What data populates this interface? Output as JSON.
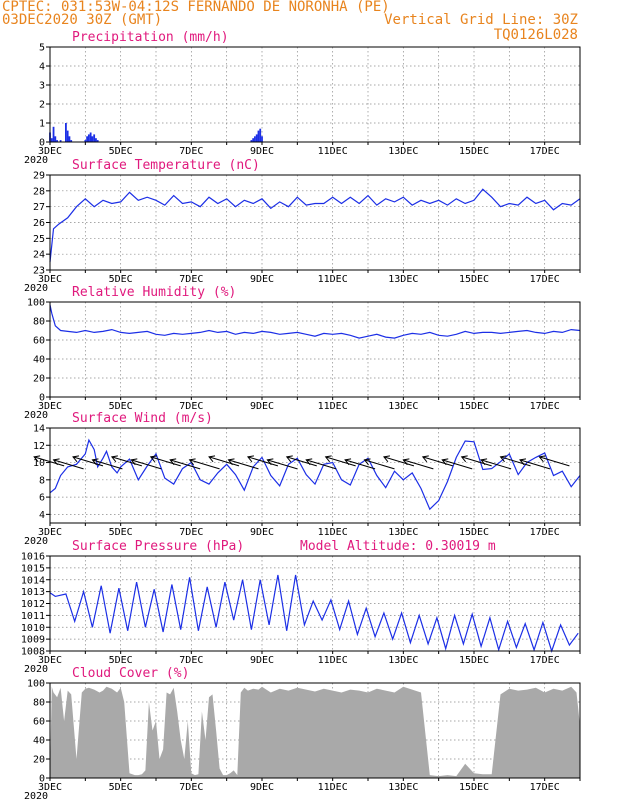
{
  "header": {
    "line1": "CPTEC:  031:53W-04:12S  FERNANDO DE NORONHA (PE)",
    "line2_left": "03DEC2020 30Z (GMT)",
    "line2_right": "Vertical Grid Line: 30Z",
    "code": "TQ0126L028"
  },
  "x_ticks": [
    "3DEC",
    "5DEC",
    "7DEC",
    "9DEC",
    "11DEC",
    "13DEC",
    "15DEC",
    "17DEC"
  ],
  "year_label": "2020",
  "panels": [
    {
      "id": "precip",
      "title": "Precipitation (mm/h)",
      "extra": "",
      "y_ticks": [
        "0",
        "1",
        "2",
        "3",
        "4",
        "5"
      ]
    },
    {
      "id": "temp",
      "title": "Surface Temperature (nC)",
      "extra": "",
      "y_ticks": [
        "23",
        "24",
        "25",
        "26",
        "27",
        "28",
        "29"
      ]
    },
    {
      "id": "rh",
      "title": "Relative Humidity (%)",
      "extra": "",
      "y_ticks": [
        "0",
        "20",
        "40",
        "60",
        "80",
        "100"
      ]
    },
    {
      "id": "wind",
      "title": "Surface Wind (m/s)",
      "extra": "",
      "y_ticks": [
        "4",
        "6",
        "8",
        "10",
        "12",
        "14"
      ]
    },
    {
      "id": "pres",
      "title": "Surface Pressure (hPa)",
      "extra": "Model Altitude: 0.30019 m",
      "y_ticks": [
        "1008",
        "1009",
        "1010",
        "1011",
        "1012",
        "1013",
        "1014",
        "1015",
        "1016"
      ]
    },
    {
      "id": "cloud",
      "title": "Cloud Cover (%)",
      "extra": "",
      "y_ticks": [
        "0",
        "20",
        "40",
        "60",
        "80",
        "100"
      ]
    }
  ],
  "colors": {
    "line": "#1c2fe6",
    "cloud": "#a9a9a9",
    "header": "#e8841e",
    "title": "#e0197d"
  },
  "chart_data": [
    {
      "type": "bar",
      "title": "Precipitation (mm/h)",
      "xlabel": "",
      "ylabel": "",
      "x_unit": "days since 3DEC2020",
      "ylim": [
        0,
        5
      ],
      "x": [
        0.0,
        0.05,
        0.1,
        0.15,
        0.2,
        0.25,
        0.3,
        0.45,
        0.5,
        0.55,
        0.6,
        1.0,
        1.05,
        1.1,
        1.15,
        1.2,
        1.25,
        1.3,
        1.35,
        1.4,
        1.45,
        5.7,
        5.75,
        5.8,
        5.85,
        5.9,
        5.95,
        6.0
      ],
      "values": [
        0.5,
        0.2,
        0.8,
        0.3,
        0.1,
        0.0,
        0.1,
        1.0,
        0.6,
        0.3,
        0.1,
        0.1,
        0.3,
        0.4,
        0.5,
        0.3,
        0.4,
        0.2,
        0.1,
        0.0,
        0.0,
        0.1,
        0.2,
        0.3,
        0.4,
        0.6,
        0.7,
        0.3
      ]
    },
    {
      "type": "line",
      "title": "Surface Temperature (nC)",
      "ylim": [
        23,
        29
      ],
      "x": [
        0,
        0.1,
        0.25,
        0.5,
        0.75,
        1.0,
        1.25,
        1.5,
        1.75,
        2.0,
        2.25,
        2.5,
        2.75,
        3.0,
        3.25,
        3.5,
        3.75,
        4.0,
        4.25,
        4.5,
        4.75,
        5.0,
        5.25,
        5.5,
        5.75,
        6.0,
        6.25,
        6.5,
        6.75,
        7.0,
        7.25,
        7.5,
        7.75,
        8.0,
        8.25,
        8.5,
        8.75,
        9.0,
        9.25,
        9.5,
        9.75,
        10.0,
        10.25,
        10.5,
        10.75,
        11.0,
        11.25,
        11.5,
        11.75,
        12.0,
        12.25,
        12.5,
        12.75,
        13.0,
        13.25,
        13.5,
        13.75,
        14.0,
        14.25,
        14.5,
        14.75,
        15.0
      ],
      "values": [
        23.5,
        25.6,
        25.9,
        26.3,
        27.0,
        27.5,
        27.0,
        27.4,
        27.2,
        27.3,
        27.9,
        27.4,
        27.6,
        27.4,
        27.1,
        27.7,
        27.2,
        27.3,
        27.0,
        27.6,
        27.2,
        27.5,
        27.0,
        27.4,
        27.2,
        27.5,
        26.9,
        27.3,
        27.0,
        27.6,
        27.1,
        27.2,
        27.2,
        27.6,
        27.2,
        27.6,
        27.2,
        27.7,
        27.1,
        27.5,
        27.3,
        27.6,
        27.1,
        27.4,
        27.2,
        27.4,
        27.1,
        27.5,
        27.2,
        27.4,
        28.1,
        27.6,
        27.0,
        27.2,
        27.1,
        27.6,
        27.2,
        27.4,
        26.8,
        27.2,
        27.1,
        27.5
      ]
    },
    {
      "type": "line",
      "title": "Relative Humidity (%)",
      "ylim": [
        0,
        100
      ],
      "x": [
        0,
        0.05,
        0.15,
        0.3,
        0.5,
        0.75,
        1.0,
        1.25,
        1.5,
        1.75,
        2.0,
        2.25,
        2.5,
        2.75,
        3.0,
        3.25,
        3.5,
        3.75,
        4.0,
        4.25,
        4.5,
        4.75,
        5.0,
        5.25,
        5.5,
        5.75,
        6.0,
        6.25,
        6.5,
        6.75,
        7.0,
        7.25,
        7.5,
        7.75,
        8.0,
        8.25,
        8.5,
        8.75,
        9.0,
        9.25,
        9.5,
        9.75,
        10.0,
        10.25,
        10.5,
        10.75,
        11.0,
        11.25,
        11.5,
        11.75,
        12.0,
        12.25,
        12.5,
        12.75,
        13.0,
        13.25,
        13.5,
        13.75,
        14.0,
        14.25,
        14.5,
        14.75,
        15.0
      ],
      "values": [
        97,
        88,
        75,
        70,
        69,
        68,
        70,
        68,
        69,
        71,
        68,
        67,
        68,
        69,
        66,
        65,
        67,
        66,
        67,
        68,
        70,
        68,
        69,
        66,
        68,
        67,
        69,
        68,
        66,
        67,
        68,
        66,
        64,
        67,
        66,
        67,
        65,
        62,
        64,
        66,
        63,
        62,
        65,
        67,
        66,
        68,
        65,
        64,
        66,
        69,
        67,
        68,
        68,
        67,
        68,
        69,
        70,
        68,
        67,
        69,
        68,
        71,
        70
      ]
    },
    {
      "type": "line",
      "title": "Surface Wind (m/s)",
      "ylim": [
        3,
        14
      ],
      "x": [
        0,
        0.15,
        0.3,
        0.5,
        0.75,
        1.0,
        1.1,
        1.25,
        1.35,
        1.5,
        1.6,
        1.75,
        1.9,
        2.0,
        2.25,
        2.5,
        2.75,
        3.0,
        3.25,
        3.5,
        3.75,
        4.0,
        4.25,
        4.5,
        4.75,
        5.0,
        5.25,
        5.5,
        5.75,
        6.0,
        6.25,
        6.5,
        6.75,
        7.0,
        7.25,
        7.5,
        7.75,
        8.0,
        8.25,
        8.5,
        8.75,
        9.0,
        9.25,
        9.5,
        9.75,
        10.0,
        10.25,
        10.5,
        10.75,
        11.0,
        11.25,
        11.5,
        11.75,
        12.0,
        12.25,
        12.5,
        12.75,
        13.0,
        13.25,
        13.5,
        13.75,
        14.0,
        14.25,
        14.5,
        14.75,
        15.0
      ],
      "values": [
        6.5,
        7.0,
        8.5,
        9.5,
        9.8,
        11.0,
        12.6,
        11.5,
        9.5,
        10.5,
        11.3,
        9.5,
        8.8,
        9.5,
        10.4,
        8.0,
        9.6,
        11.0,
        8.2,
        7.5,
        9.3,
        10.0,
        8.0,
        7.5,
        8.8,
        9.8,
        8.6,
        6.8,
        9.5,
        10.6,
        8.5,
        7.3,
        9.8,
        10.5,
        8.6,
        7.5,
        9.8,
        10.0,
        8.0,
        7.4,
        9.8,
        10.5,
        8.5,
        7.1,
        9.0,
        8.0,
        8.8,
        7.0,
        4.6,
        5.6,
        7.8,
        10.6,
        12.5,
        12.4,
        9.2,
        9.3,
        10.1,
        11.0,
        8.6,
        10.0,
        10.6,
        11.1,
        8.5,
        9.0,
        7.2,
        8.5
      ]
    },
    {
      "type": "line",
      "title": "Surface Pressure (hPa)",
      "ylim": [
        1008,
        1016
      ],
      "x": [
        0,
        0.15,
        0.45,
        0.7,
        0.95,
        1.2,
        1.45,
        1.7,
        1.95,
        2.2,
        2.45,
        2.7,
        2.95,
        3.2,
        3.45,
        3.7,
        3.95,
        4.2,
        4.45,
        4.7,
        4.95,
        5.2,
        5.45,
        5.7,
        5.95,
        6.2,
        6.45,
        6.7,
        6.95,
        7.2,
        7.45,
        7.7,
        7.95,
        8.2,
        8.45,
        8.7,
        8.95,
        9.2,
        9.45,
        9.7,
        9.95,
        10.2,
        10.45,
        10.7,
        10.95,
        11.2,
        11.45,
        11.7,
        11.95,
        12.2,
        12.45,
        12.7,
        12.95,
        13.2,
        13.45,
        13.7,
        13.95,
        14.2,
        14.45,
        14.7,
        14.95
      ],
      "values": [
        1012.9,
        1012.6,
        1012.8,
        1010.5,
        1013.0,
        1010.0,
        1013.5,
        1009.5,
        1013.3,
        1009.7,
        1013.8,
        1010.0,
        1013.2,
        1009.6,
        1013.6,
        1009.8,
        1014.2,
        1009.7,
        1013.4,
        1010.0,
        1013.8,
        1010.6,
        1014.0,
        1009.8,
        1014.0,
        1010.2,
        1014.4,
        1009.7,
        1014.4,
        1010.2,
        1012.2,
        1010.6,
        1012.3,
        1009.8,
        1012.2,
        1009.4,
        1011.6,
        1009.2,
        1011.2,
        1009.0,
        1011.2,
        1008.7,
        1011.0,
        1008.6,
        1010.8,
        1008.2,
        1011.0,
        1008.6,
        1011.1,
        1008.4,
        1010.8,
        1008.1,
        1010.5,
        1008.3,
        1010.3,
        1008.1,
        1010.4,
        1008.0,
        1010.2,
        1008.5,
        1009.5
      ]
    },
    {
      "type": "area",
      "title": "Cloud Cover (%)",
      "ylim": [
        0,
        100
      ],
      "x": [
        0,
        0.05,
        0.1,
        0.2,
        0.3,
        0.4,
        0.5,
        0.6,
        0.75,
        0.9,
        1.0,
        1.1,
        1.25,
        1.4,
        1.5,
        1.6,
        1.75,
        1.9,
        2.0,
        2.1,
        2.25,
        2.4,
        2.5,
        2.6,
        2.7,
        2.8,
        2.9,
        3.0,
        3.1,
        3.2,
        3.3,
        3.4,
        3.5,
        3.6,
        3.7,
        3.8,
        3.9,
        4.0,
        4.1,
        4.2,
        4.3,
        4.4,
        4.5,
        4.6,
        4.7,
        4.8,
        4.9,
        5.0,
        5.1,
        5.2,
        5.3,
        5.4,
        5.5,
        5.6,
        5.75,
        5.9,
        6.0,
        6.25,
        6.5,
        6.75,
        7.0,
        7.25,
        7.5,
        7.75,
        8.0,
        8.25,
        8.5,
        8.75,
        9.0,
        9.25,
        9.5,
        9.75,
        10.0,
        10.25,
        10.5,
        10.75,
        11.0,
        11.25,
        11.5,
        11.75,
        12.0,
        12.25,
        12.5,
        12.75,
        13.0,
        13.25,
        13.5,
        13.75,
        14.0,
        14.25,
        14.5,
        14.75,
        14.9,
        15.0
      ],
      "values": [
        2,
        96,
        90,
        85,
        95,
        60,
        92,
        88,
        20,
        90,
        94,
        95,
        93,
        90,
        92,
        96,
        94,
        90,
        95,
        80,
        5,
        3,
        3,
        4,
        8,
        80,
        50,
        60,
        20,
        30,
        90,
        88,
        95,
        70,
        40,
        20,
        60,
        5,
        3,
        4,
        70,
        40,
        85,
        88,
        50,
        10,
        3,
        3,
        5,
        8,
        3,
        90,
        95,
        92,
        94,
        93,
        96,
        90,
        94,
        92,
        95,
        93,
        91,
        94,
        92,
        90,
        93,
        92,
        90,
        94,
        92,
        90,
        96,
        93,
        90,
        3,
        2,
        3,
        2,
        15,
        5,
        4,
        4,
        88,
        94,
        92,
        93,
        95,
        90,
        94,
        92,
        96,
        90,
        55
      ]
    }
  ]
}
